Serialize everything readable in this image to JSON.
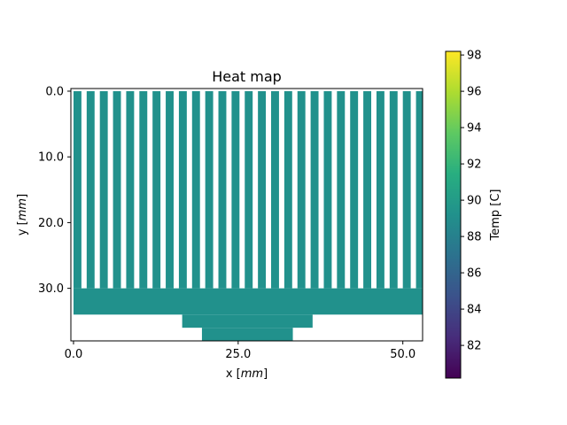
{
  "chart_data": {
    "type": "heatmap",
    "title": "Heat map",
    "xlabel_prefix": "x [",
    "xlabel_unit": "mm",
    "xlabel_suffix": "]",
    "ylabel_prefix": "y [",
    "ylabel_unit": "mm",
    "ylabel_suffix": "]",
    "xlim": [
      -0.4,
      53.0
    ],
    "ylim": [
      38.0,
      -0.4
    ],
    "y_inverted": true,
    "x_ticks": [
      {
        "v": 0,
        "label": "0.0"
      },
      {
        "v": 25,
        "label": "25.0"
      },
      {
        "v": 50,
        "label": "50.0"
      }
    ],
    "y_ticks": [
      {
        "v": 0,
        "label": "0.0"
      },
      {
        "v": 10,
        "label": "10.0"
      },
      {
        "v": 20,
        "label": "20.0"
      },
      {
        "v": 30,
        "label": "30.0"
      }
    ],
    "fill_color": "#21918c",
    "fill_value": 89.7,
    "fin_count": 27,
    "fin_pitch": 2.0,
    "fin_width": 1.2,
    "fins_y_range": [
      0,
      30
    ],
    "regions": [
      {
        "name": "base",
        "x": [
          0,
          53.0
        ],
        "y": [
          30,
          34
        ]
      },
      {
        "name": "step",
        "x": [
          16.5,
          36.3
        ],
        "y": [
          34,
          36
        ]
      },
      {
        "name": "stem",
        "x": [
          19.5,
          33.3
        ],
        "y": [
          36,
          38
        ]
      }
    ],
    "colorbar": {
      "label": "Temp [C]",
      "colormap": "viridis",
      "range": [
        80.2,
        98.2
      ],
      "ticks": [
        {
          "v": 82,
          "label": "82"
        },
        {
          "v": 84,
          "label": "84"
        },
        {
          "v": 86,
          "label": "86"
        },
        {
          "v": 88,
          "label": "88"
        },
        {
          "v": 90,
          "label": "90"
        },
        {
          "v": 92,
          "label": "92"
        },
        {
          "v": 94,
          "label": "94"
        },
        {
          "v": 96,
          "label": "96"
        },
        {
          "v": 98,
          "label": "98"
        }
      ]
    }
  }
}
